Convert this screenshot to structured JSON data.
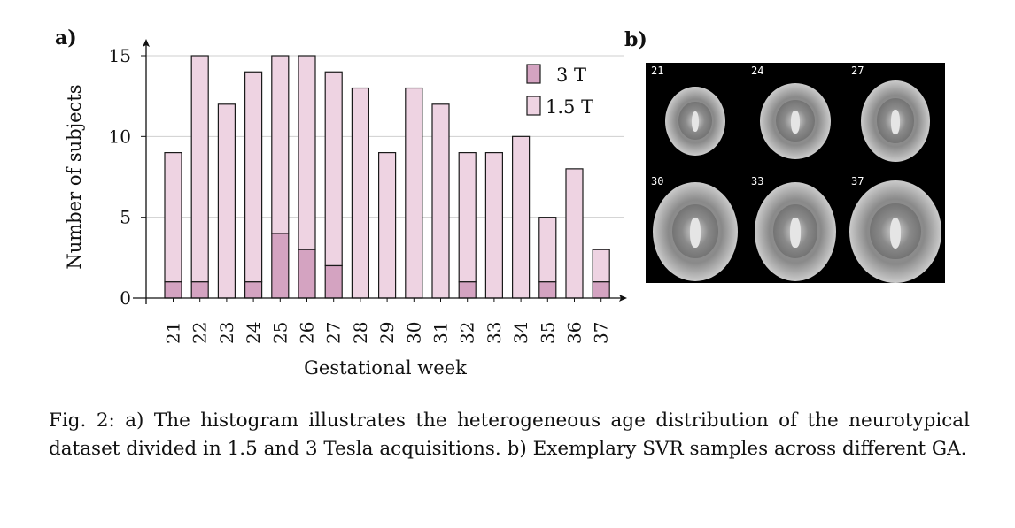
{
  "panels": {
    "a_label": "a)",
    "b_label": "b)"
  },
  "chart_data": {
    "type": "bar",
    "stacked": true,
    "categories": [
      "21",
      "22",
      "23",
      "24",
      "25",
      "26",
      "27",
      "28",
      "29",
      "30",
      "31",
      "32",
      "33",
      "34",
      "35",
      "36",
      "37"
    ],
    "series": [
      {
        "name": "3 T",
        "values": [
          1,
          1,
          0,
          1,
          4,
          3,
          2,
          0,
          0,
          0,
          0,
          1,
          0,
          0,
          1,
          0,
          1
        ],
        "color": "#d4a3c1"
      },
      {
        "name": "1.5 T",
        "values": [
          8,
          14,
          12,
          13,
          11,
          12,
          12,
          13,
          9,
          13,
          12,
          8,
          9,
          10,
          4,
          8,
          2
        ],
        "color": "#eed3e2"
      }
    ],
    "xlabel": "Gestational week",
    "ylabel": "Number of subjects",
    "ylim": [
      0,
      15
    ],
    "yticks": [
      0,
      5,
      10,
      15
    ],
    "grid": true,
    "legend_position": "top-right"
  },
  "mri_slices": [
    "21",
    "24",
    "27",
    "30",
    "33",
    "37"
  ],
  "caption": "Fig. 2: a) The histogram illustrates the heterogeneous age distribution of the neurotypical dataset divided in 1.5 and 3 Tesla acquisitions. b) Exemplary SVR samples across different GA."
}
